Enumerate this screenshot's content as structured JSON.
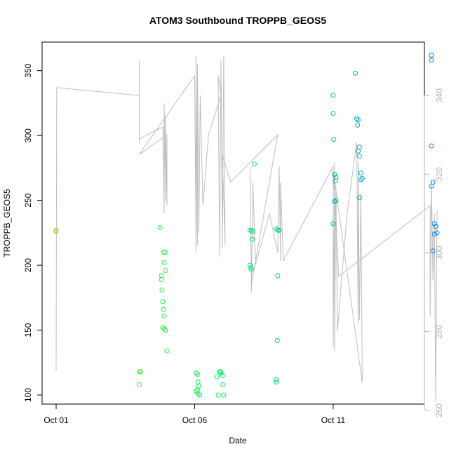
{
  "chart_data": {
    "type": "scatter",
    "title": "ATOM3 Southbound TROPPB_GEOS5",
    "xlabel": "Date",
    "ylabel": "TROPPB_GEOS5",
    "x_ticks": [
      "Oct 01",
      "Oct 06",
      "Oct 11"
    ],
    "x_tick_days": [
      1,
      6,
      11
    ],
    "xlim": [
      1.0,
      14.8
    ],
    "ylim": [
      93,
      372
    ],
    "y_ticks": [
      100,
      150,
      200,
      250,
      300,
      350
    ],
    "y2lim": [
      258,
      350
    ],
    "y2_ticks": [
      260,
      280,
      300,
      320,
      340
    ],
    "grid": false,
    "colors": {
      "points_from": "#9ACD32",
      "points_mid": "#00FF40",
      "points_to": "#0080FF",
      "line": "#BEBEBE",
      "right_axis": "#B3B3B3"
    },
    "series": [
      {
        "type": "scatter",
        "points": [
          [
            1.0,
            227
          ],
          [
            1.0,
            226
          ],
          [
            4.0,
            118
          ],
          [
            4.05,
            118
          ],
          [
            4.0,
            108
          ],
          [
            4.75,
            229
          ],
          [
            4.8,
            192
          ],
          [
            4.8,
            189
          ],
          [
            4.82,
            181
          ],
          [
            4.88,
            166
          ],
          [
            4.9,
            161
          ],
          [
            4.85,
            172
          ],
          [
            4.88,
            210
          ],
          [
            4.93,
            210
          ],
          [
            4.9,
            202
          ],
          [
            4.95,
            196
          ],
          [
            4.85,
            152
          ],
          [
            4.9,
            151
          ],
          [
            4.95,
            150
          ],
          [
            5.0,
            134
          ],
          [
            6.05,
            117
          ],
          [
            6.1,
            116
          ],
          [
            6.12,
            110
          ],
          [
            6.15,
            107
          ],
          [
            6.1,
            104
          ],
          [
            6.05,
            103
          ],
          [
            6.12,
            101
          ],
          [
            6.18,
            100
          ],
          [
            6.8,
            114
          ],
          [
            6.9,
            118
          ],
          [
            6.95,
            117
          ],
          [
            7.0,
            115
          ],
          [
            6.92,
            118
          ],
          [
            7.02,
            108
          ],
          [
            6.85,
            100
          ],
          [
            7.05,
            100
          ],
          [
            8.0,
            227
          ],
          [
            8.05,
            227
          ],
          [
            8.1,
            226
          ],
          [
            8.08,
            220
          ],
          [
            8.0,
            200
          ],
          [
            8.02,
            198
          ],
          [
            8.05,
            197
          ],
          [
            8.15,
            278
          ],
          [
            8.95,
            228
          ],
          [
            9.0,
            227
          ],
          [
            9.05,
            227
          ],
          [
            9.0,
            192
          ],
          [
            8.98,
            142
          ],
          [
            8.95,
            112
          ],
          [
            8.95,
            110
          ],
          [
            11.0,
            331
          ],
          [
            11.0,
            317
          ],
          [
            11.02,
            297
          ],
          [
            11.05,
            270
          ],
          [
            11.1,
            268
          ],
          [
            11.08,
            265
          ],
          [
            11.1,
            250
          ],
          [
            11.05,
            249
          ],
          [
            11.0,
            232
          ],
          [
            11.8,
            348
          ],
          [
            11.85,
            313
          ],
          [
            11.9,
            312
          ],
          [
            11.88,
            308
          ],
          [
            11.95,
            291
          ],
          [
            11.9,
            288
          ],
          [
            11.95,
            284
          ],
          [
            12.0,
            271
          ],
          [
            12.05,
            267
          ],
          [
            12.0,
            266
          ],
          [
            11.95,
            252
          ],
          [
            14.55,
            362
          ],
          [
            14.55,
            358
          ],
          [
            14.55,
            292
          ],
          [
            14.6,
            264
          ],
          [
            14.55,
            261
          ],
          [
            14.65,
            232
          ],
          [
            14.7,
            230
          ],
          [
            14.75,
            225
          ],
          [
            14.65,
            224
          ],
          [
            14.6,
            211
          ]
        ]
      },
      {
        "type": "line",
        "axis": "right",
        "points": [
          [
            1.0,
            270
          ],
          [
            1.02,
            342
          ],
          [
            4.0,
            340
          ],
          [
            4.0,
            336
          ],
          [
            4.0,
            349
          ],
          [
            4.0,
            328
          ],
          [
            4.0,
            329
          ],
          [
            4.85,
            332
          ],
          [
            4.9,
            310
          ],
          [
            4.9,
            338
          ],
          [
            4.95,
            313
          ],
          [
            4.95,
            335
          ],
          [
            5.0,
            312
          ],
          [
            5.0,
            330
          ],
          [
            4.0,
            325
          ],
          [
            6.0,
            345
          ],
          [
            6.05,
            300
          ],
          [
            6.05,
            350
          ],
          [
            6.1,
            302
          ],
          [
            6.1,
            348
          ],
          [
            6.15,
            305
          ],
          [
            6.2,
            340
          ],
          [
            6.3,
            312
          ],
          [
            6.5,
            330
          ],
          [
            6.95,
            340
          ],
          [
            6.85,
            345
          ],
          [
            6.9,
            299
          ],
          [
            6.95,
            349
          ],
          [
            7.0,
            301
          ],
          [
            7.05,
            350
          ],
          [
            7.1,
            302
          ],
          [
            7.0,
            325
          ],
          [
            7.3,
            318
          ],
          [
            9.0,
            330
          ],
          [
            8.05,
            292
          ],
          [
            8.0,
            322
          ],
          [
            8.05,
            290
          ],
          [
            8.1,
            318
          ],
          [
            8.2,
            297
          ],
          [
            8.7,
            310
          ],
          [
            9.0,
            300
          ],
          [
            9.05,
            322
          ],
          [
            9.1,
            298
          ],
          [
            9.1,
            318
          ],
          [
            9.2,
            298
          ],
          [
            11.0,
            322
          ],
          [
            11.0,
            276
          ],
          [
            11.05,
            323
          ],
          [
            11.05,
            275
          ],
          [
            11.1,
            317
          ],
          [
            11.15,
            280
          ],
          [
            11.5,
            310
          ],
          [
            11.85,
            328
          ],
          [
            11.9,
            282
          ],
          [
            11.9,
            323
          ],
          [
            11.95,
            283
          ],
          [
            12.0,
            315
          ],
          [
            12.05,
            267
          ],
          [
            11.0,
            321
          ],
          [
            11.2,
            294
          ],
          [
            14.5,
            312
          ],
          [
            14.5,
            284
          ],
          [
            14.55,
            318
          ],
          [
            14.6,
            293
          ],
          [
            14.65,
            310
          ],
          [
            14.7,
            262
          ],
          [
            14.75,
            311
          ]
        ]
      }
    ]
  }
}
